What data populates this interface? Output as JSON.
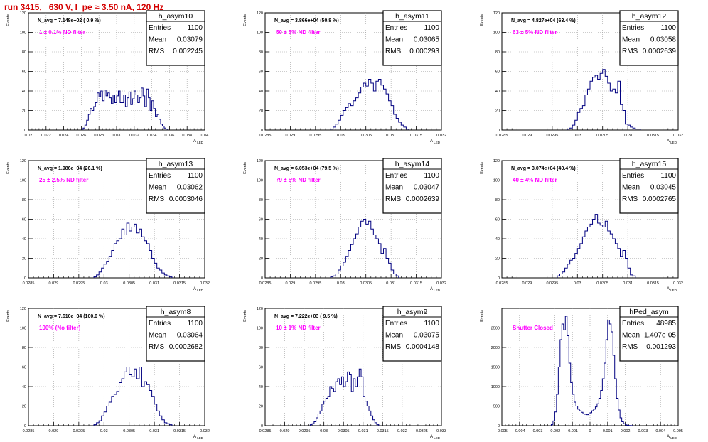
{
  "run_title": "run 3415,   630 V, I_pe ≈ 3.50 nA, 120 Hz",
  "colors": {
    "histogram": "#000080",
    "filter_text": "#ff00ff",
    "title_text": "#d40000"
  },
  "stats_labels": {
    "entries": "Entries",
    "mean": "Mean",
    "rms": "RMS"
  },
  "y_axis_label": "Events",
  "x_axis_label": "A",
  "x_axis_subscript": "LED",
  "chart_data": [
    {
      "type": "histogram",
      "name": "h_asym10",
      "n_avg": "N_avg = 7.148e+02 ( 0.9 %)",
      "filter": "1 ± 0.1% ND filter",
      "stats": {
        "entries": "1100",
        "mean": "0.03079",
        "rms": "0.002245"
      },
      "xlim": [
        0.02,
        0.04
      ],
      "ylim": [
        0,
        120
      ],
      "xticks": [
        "0.02",
        "0.022",
        "0.024",
        "0.026",
        "0.028",
        "0.03",
        "0.032",
        "0.034",
        "0.036",
        "0.038",
        "0.04"
      ],
      "yticks": [
        "0",
        "20",
        "40",
        "60",
        "80",
        "100",
        "120"
      ],
      "x": [
        0.0262,
        0.0264,
        0.0266,
        0.0268,
        0.027,
        0.0272,
        0.0274,
        0.0276,
        0.0278,
        0.028,
        0.0282,
        0.0284,
        0.0286,
        0.0288,
        0.029,
        0.0292,
        0.0294,
        0.0296,
        0.0298,
        0.03,
        0.0302,
        0.0304,
        0.0306,
        0.0308,
        0.031,
        0.0312,
        0.0314,
        0.0316,
        0.0318,
        0.032,
        0.0322,
        0.0324,
        0.0326,
        0.0328,
        0.033,
        0.0332,
        0.0334,
        0.0336,
        0.0338,
        0.034,
        0.0342,
        0.0344,
        0.0346,
        0.0348,
        0.035,
        0.0352,
        0.0354,
        0.0356
      ],
      "values": [
        2,
        5,
        10,
        16,
        22,
        20,
        24,
        28,
        38,
        34,
        40,
        30,
        41,
        35,
        38,
        33,
        27,
        36,
        28,
        35,
        40,
        28,
        28,
        36,
        24,
        33,
        39,
        26,
        32,
        40,
        36,
        28,
        33,
        43,
        35,
        24,
        42,
        33,
        20,
        30,
        22,
        14,
        16,
        11,
        6,
        4,
        2,
        1
      ]
    },
    {
      "type": "histogram",
      "name": "h_asym11",
      "n_avg": "N_avg = 3.866e+04 (50.8 %)",
      "filter": "50 ± 5% ND filter",
      "stats": {
        "entries": "1100",
        "mean": "0.03065",
        "rms": "0.000293"
      },
      "xlim": [
        0.0285,
        0.032
      ],
      "ylim": [
        0,
        120
      ],
      "xticks": [
        "0.0285",
        "0.029",
        "0.0295",
        "0.03",
        "0.0305",
        "0.031",
        "0.0315",
        "0.032"
      ],
      "yticks": [
        "0",
        "20",
        "40",
        "60",
        "80",
        "100",
        "120"
      ],
      "x": [
        0.0298,
        0.02985,
        0.0299,
        0.02995,
        0.03,
        0.03005,
        0.0301,
        0.03015,
        0.0302,
        0.03025,
        0.0303,
        0.03035,
        0.0304,
        0.03045,
        0.0305,
        0.03055,
        0.0306,
        0.03065,
        0.0307,
        0.03075,
        0.0308,
        0.03085,
        0.0309,
        0.03095,
        0.031,
        0.03105,
        0.0311,
        0.03115,
        0.0312,
        0.03125,
        0.0313
      ],
      "values": [
        1,
        3,
        6,
        10,
        15,
        20,
        23,
        27,
        25,
        30,
        33,
        38,
        44,
        48,
        45,
        52,
        48,
        40,
        50,
        52,
        46,
        42,
        37,
        30,
        25,
        16,
        12,
        8,
        5,
        3,
        1
      ]
    },
    {
      "type": "histogram",
      "name": "h_asym12",
      "n_avg": "N_avg = 4.827e+04 (63.4 %)",
      "filter": "63 ± 5% ND filter",
      "stats": {
        "entries": "1100",
        "mean": "0.03058",
        "rms": "0.0002639"
      },
      "xlim": [
        0.0285,
        0.032
      ],
      "ylim": [
        0,
        120
      ],
      "xticks": [
        "0.0285",
        "0.029",
        "0.0295",
        "0.03",
        "0.0305",
        "0.031",
        "0.0315",
        "0.032"
      ],
      "yticks": [
        "0",
        "20",
        "40",
        "60",
        "80",
        "100",
        "120"
      ],
      "x": [
        0.0298,
        0.02985,
        0.0299,
        0.02995,
        0.03,
        0.03005,
        0.0301,
        0.03015,
        0.0302,
        0.03025,
        0.0303,
        0.03035,
        0.0304,
        0.03045,
        0.0305,
        0.03055,
        0.0306,
        0.03065,
        0.0307,
        0.03075,
        0.0308,
        0.03085,
        0.0309,
        0.03095,
        0.031,
        0.03105,
        0.0311,
        0.03115,
        0.0312
      ],
      "values": [
        1,
        2,
        5,
        10,
        18,
        22,
        25,
        36,
        42,
        50,
        54,
        56,
        52,
        58,
        62,
        55,
        48,
        40,
        42,
        38,
        50,
        26,
        20,
        6,
        5,
        3,
        2,
        1,
        1
      ]
    },
    {
      "type": "histogram",
      "name": "h_asym13",
      "n_avg": "N_avg = 1.986e+04 (26.1 %)",
      "filter": "25 ± 2.5% ND filter",
      "stats": {
        "entries": "1100",
        "mean": "0.03062",
        "rms": "0.0003046"
      },
      "xlim": [
        0.0285,
        0.032
      ],
      "ylim": [
        0,
        120
      ],
      "xticks": [
        "0.0285",
        "0.029",
        "0.0295",
        "0.03",
        "0.0305",
        "0.031",
        "0.0315",
        "0.032"
      ],
      "yticks": [
        "0",
        "20",
        "40",
        "60",
        "80",
        "100",
        "120"
      ],
      "x": [
        0.0298,
        0.02985,
        0.0299,
        0.02995,
        0.03,
        0.03005,
        0.0301,
        0.03015,
        0.0302,
        0.03025,
        0.0303,
        0.03035,
        0.0304,
        0.03045,
        0.0305,
        0.03055,
        0.0306,
        0.03065,
        0.0307,
        0.03075,
        0.0308,
        0.03085,
        0.0309,
        0.03095,
        0.031,
        0.03105,
        0.0311,
        0.03115,
        0.0312,
        0.03125,
        0.0313
      ],
      "values": [
        1,
        3,
        6,
        10,
        14,
        17,
        22,
        28,
        35,
        38,
        40,
        50,
        44,
        56,
        48,
        52,
        55,
        46,
        50,
        42,
        38,
        35,
        28,
        20,
        15,
        10,
        8,
        5,
        3,
        2,
        1
      ]
    },
    {
      "type": "histogram",
      "name": "h_asym14",
      "n_avg": "N_avg = 6.053e+04 (79.5 %)",
      "filter": "79 ± 5% ND filter",
      "stats": {
        "entries": "1100",
        "mean": "0.03047",
        "rms": "0.0002639"
      },
      "xlim": [
        0.0285,
        0.032
      ],
      "ylim": [
        0,
        120
      ],
      "xticks": [
        "0.0285",
        "0.029",
        "0.0295",
        "0.03",
        "0.0305",
        "0.031",
        "0.0315",
        "0.032"
      ],
      "yticks": [
        "0",
        "20",
        "40",
        "60",
        "80",
        "100",
        "120"
      ],
      "x": [
        0.0298,
        0.02985,
        0.0299,
        0.02995,
        0.03,
        0.03005,
        0.0301,
        0.03015,
        0.0302,
        0.03025,
        0.0303,
        0.03035,
        0.0304,
        0.03045,
        0.0305,
        0.03055,
        0.0306,
        0.03065,
        0.0307,
        0.03075,
        0.0308,
        0.03085,
        0.0309,
        0.03095,
        0.031,
        0.03105,
        0.0311
      ],
      "values": [
        1,
        2,
        4,
        8,
        12,
        16,
        22,
        28,
        34,
        40,
        45,
        52,
        58,
        60,
        55,
        58,
        50,
        44,
        40,
        35,
        25,
        30,
        20,
        15,
        8,
        4,
        2
      ]
    },
    {
      "type": "histogram",
      "name": "h_asym15",
      "n_avg": "N_avg = 3.074e+04 (40.4 %)",
      "filter": "40 ± 4% ND filter",
      "stats": {
        "entries": "1100",
        "mean": "0.03045",
        "rms": "0.0002765"
      },
      "xlim": [
        0.0285,
        0.032
      ],
      "ylim": [
        0,
        120
      ],
      "xticks": [
        "0.0285",
        "0.029",
        "0.0295",
        "0.03",
        "0.0305",
        "0.031",
        "0.0315",
        "0.032"
      ],
      "yticks": [
        "0",
        "20",
        "40",
        "60",
        "80",
        "100",
        "120"
      ],
      "x": [
        0.0296,
        0.02965,
        0.0297,
        0.02975,
        0.0298,
        0.02985,
        0.0299,
        0.02995,
        0.03,
        0.03005,
        0.0301,
        0.03015,
        0.0302,
        0.03025,
        0.0303,
        0.03035,
        0.0304,
        0.03045,
        0.0305,
        0.03055,
        0.0306,
        0.03065,
        0.0307,
        0.03075,
        0.0308,
        0.03085,
        0.0309,
        0.03095,
        0.031,
        0.03105,
        0.0311
      ],
      "values": [
        2,
        4,
        6,
        10,
        14,
        18,
        20,
        25,
        30,
        35,
        42,
        48,
        52,
        55,
        60,
        65,
        56,
        54,
        52,
        58,
        48,
        45,
        40,
        35,
        30,
        22,
        28,
        20,
        10,
        3,
        2
      ]
    },
    {
      "type": "histogram",
      "name": "h_asym8",
      "n_avg": "N_avg = 7.610e+04 (100.0 %)",
      "filter": "100% (No filter)",
      "stats": {
        "entries": "1100",
        "mean": "0.03064",
        "rms": "0.0002682"
      },
      "xlim": [
        0.0285,
        0.032
      ],
      "ylim": [
        0,
        120
      ],
      "xticks": [
        "0.0285",
        "0.029",
        "0.0295",
        "0.03",
        "0.0305",
        "0.031",
        "0.0315",
        "0.032"
      ],
      "yticks": [
        "0",
        "20",
        "40",
        "60",
        "80",
        "100",
        "120"
      ],
      "x": [
        0.0298,
        0.02985,
        0.0299,
        0.02995,
        0.03,
        0.03005,
        0.0301,
        0.03015,
        0.0302,
        0.03025,
        0.0303,
        0.03035,
        0.0304,
        0.03045,
        0.0305,
        0.03055,
        0.0306,
        0.03065,
        0.0307,
        0.03075,
        0.0308,
        0.03085,
        0.0309,
        0.03095,
        0.031,
        0.03105,
        0.0311,
        0.03115,
        0.0312,
        0.03125,
        0.0313
      ],
      "values": [
        1,
        3,
        5,
        10,
        14,
        20,
        24,
        30,
        32,
        35,
        44,
        48,
        55,
        60,
        52,
        50,
        58,
        48,
        60,
        40,
        45,
        42,
        36,
        30,
        22,
        15,
        10,
        6,
        3,
        2,
        1
      ]
    },
    {
      "type": "histogram",
      "name": "h_asym9",
      "n_avg": "N_avg = 7.222e+03 ( 9.5 %)",
      "filter": "10 ± 1% ND filter",
      "stats": {
        "entries": "1100",
        "mean": "0.03075",
        "rms": "0.0004148"
      },
      "xlim": [
        0.0285,
        0.033
      ],
      "ylim": [
        0,
        120
      ],
      "xticks": [
        "0.0285",
        "0.029",
        "0.0295",
        "0.03",
        "0.0305",
        "0.031",
        "0.0315",
        "0.032",
        "0.0325",
        "0.033"
      ],
      "yticks": [
        "0",
        "20",
        "40",
        "60",
        "80",
        "100",
        "120"
      ],
      "x": [
        0.02965,
        0.0297,
        0.02975,
        0.0298,
        0.02985,
        0.0299,
        0.02995,
        0.03,
        0.03005,
        0.0301,
        0.03015,
        0.0302,
        0.03025,
        0.0303,
        0.03035,
        0.0304,
        0.03045,
        0.0305,
        0.03055,
        0.0306,
        0.03065,
        0.0307,
        0.03075,
        0.0308,
        0.03085,
        0.0309,
        0.03095,
        0.031,
        0.03105,
        0.0311,
        0.03115,
        0.0312,
        0.03125,
        0.0313,
        0.03135
      ],
      "values": [
        1,
        2,
        4,
        8,
        12,
        15,
        22,
        25,
        28,
        30,
        40,
        38,
        35,
        45,
        48,
        42,
        50,
        40,
        45,
        55,
        52,
        35,
        48,
        40,
        50,
        58,
        50,
        30,
        25,
        20,
        15,
        10,
        6,
        3,
        1
      ]
    },
    {
      "type": "histogram",
      "name": "hPed_asym",
      "n_avg": "",
      "filter": "Shutter Closed",
      "stats": {
        "entries": "48985",
        "mean": "-1.407e-05",
        "rms": "0.001293"
      },
      "xlim": [
        -0.005,
        0.005
      ],
      "ylim": [
        0,
        3000
      ],
      "xticks": [
        "-0.005",
        "-0.004",
        "-0.003",
        "-0.002",
        "-0.001",
        "0",
        "0.001",
        "0.002",
        "0.003",
        "0.004",
        "0.005"
      ],
      "yticks": [
        "0",
        "500",
        "1000",
        "1500",
        "2000",
        "2500"
      ],
      "x": [
        -0.0022,
        -0.0021,
        -0.002,
        -0.0019,
        -0.0018,
        -0.0017,
        -0.0016,
        -0.0015,
        -0.0014,
        -0.0013,
        -0.0012,
        -0.0011,
        -0.001,
        -0.0009,
        -0.0008,
        -0.0007,
        -0.0006,
        -0.0005,
        -0.0004,
        -0.0003,
        -0.0002,
        -0.0001,
        0,
        0.0001,
        0.0002,
        0.0003,
        0.0004,
        0.0005,
        0.0006,
        0.0007,
        0.0008,
        0.0009,
        0.001,
        0.0011,
        0.0012,
        0.0013,
        0.0014,
        0.0015,
        0.0016,
        0.0017,
        0.0018,
        0.0019,
        0.002,
        0.0021,
        0.0022,
        0.0023
      ],
      "values": [
        30,
        120,
        350,
        800,
        1500,
        2200,
        2600,
        2450,
        2800,
        2300,
        1600,
        1100,
        800,
        600,
        500,
        420,
        380,
        340,
        300,
        290,
        280,
        300,
        330,
        380,
        420,
        480,
        560,
        700,
        900,
        1200,
        1600,
        2200,
        2700,
        2600,
        2400,
        1800,
        1200,
        700,
        400,
        200,
        100,
        50,
        20,
        10,
        5,
        2
      ]
    }
  ]
}
